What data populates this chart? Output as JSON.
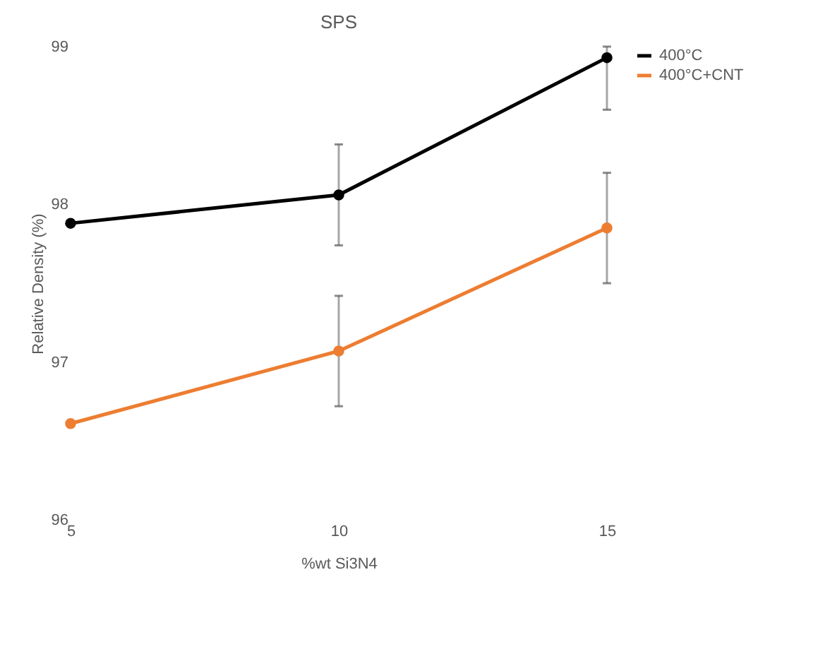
{
  "chart_data": {
    "type": "line",
    "title": "SPS",
    "xlabel": "%wt Si3N4",
    "ylabel": "Relative Density (%)",
    "x": [
      5,
      10,
      15
    ],
    "series": [
      {
        "name": "400°C",
        "color": "#000000",
        "values": [
          97.88,
          98.06,
          98.93
        ],
        "errors": [
          null,
          0.32,
          [
            98.6,
            99
          ]
        ]
      },
      {
        "name": "400°C+CNT",
        "color": "#ed7d31",
        "values": [
          96.61,
          97.07,
          97.85
        ],
        "errors": [
          null,
          0.35,
          0.35
        ]
      }
    ],
    "xlim": [
      5,
      15
    ],
    "xticks": [
      5,
      10,
      15
    ],
    "ylim": [
      96,
      99
    ],
    "yticks": [
      96,
      97,
      98,
      99
    ],
    "grid": false,
    "legend": "right",
    "marker": "circle",
    "line_style": "solid"
  }
}
